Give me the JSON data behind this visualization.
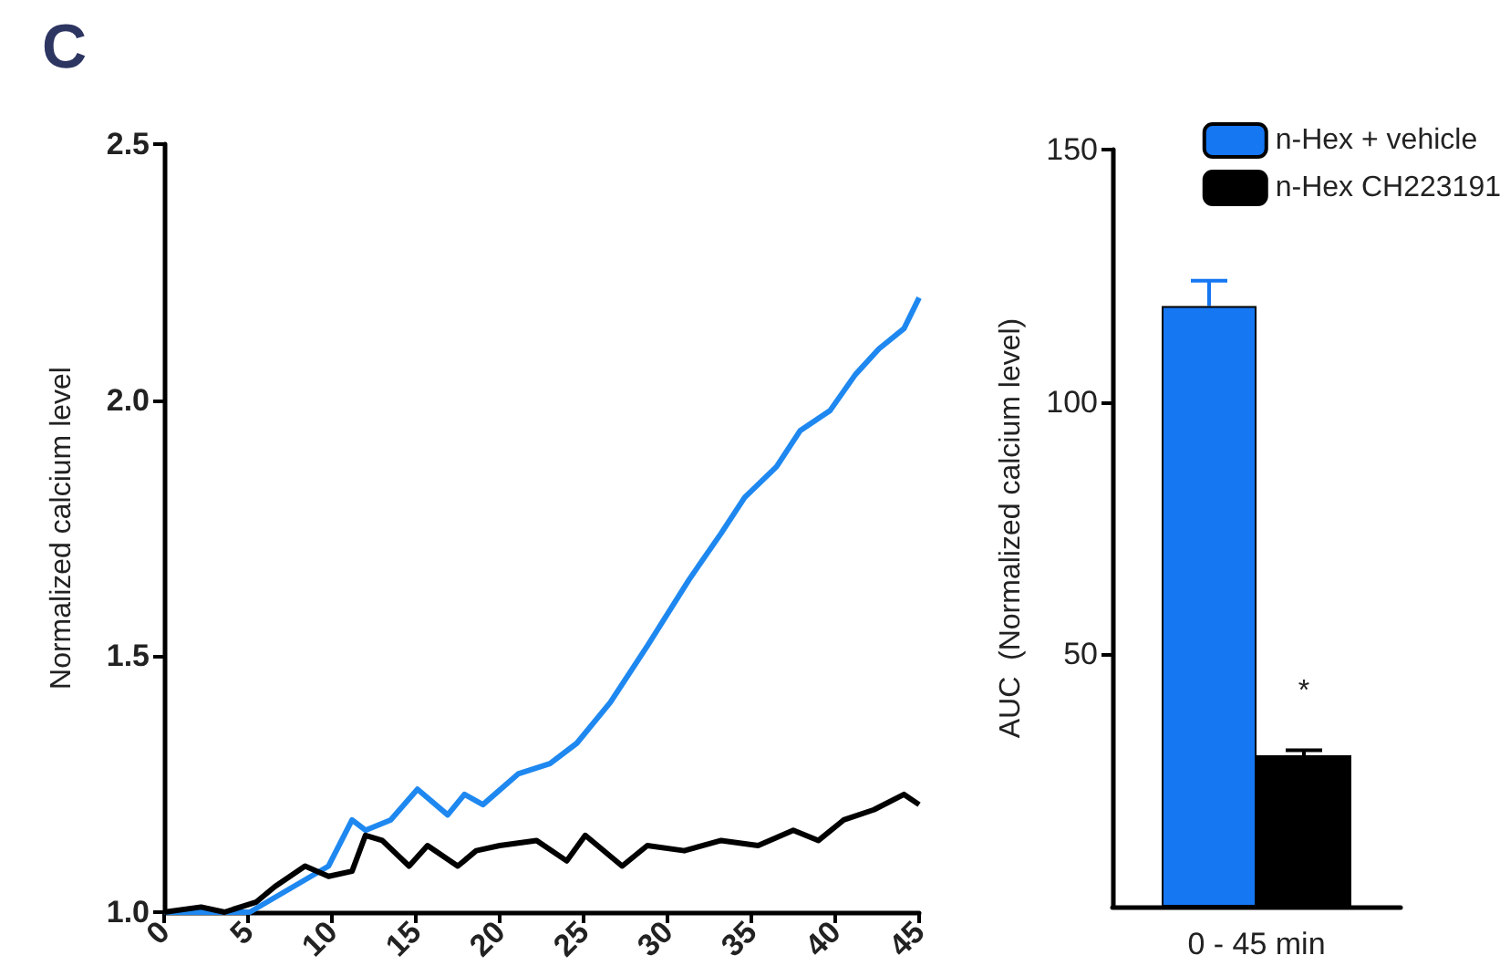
{
  "chart_data": [
    {
      "type": "line",
      "title": "C",
      "ylabel": "Normalized calcium level",
      "xlim": [
        0,
        45
      ],
      "xticks": [
        0,
        5,
        10,
        15,
        20,
        25,
        30,
        35,
        40,
        45
      ],
      "ylim": [
        1.0,
        2.5
      ],
      "yticks": [
        {
          "value": 1.0,
          "label": "1.0"
        },
        1.5,
        {
          "value": 2.0,
          "label": "2.0"
        },
        2.5
      ],
      "grid": false,
      "legend": false,
      "marker": "none",
      "line_style": "solid",
      "series": [
        {
          "color": "#1e88f0",
          "x": [
            0,
            5.1,
            9.8,
            11.2,
            12,
            13.5,
            15.1,
            16.9,
            17.9,
            19,
            21.1,
            23,
            24.6,
            26.6,
            28.8,
            31.3,
            33.2,
            34.6,
            36.5,
            37.9,
            39.7,
            41.2,
            42.6,
            44.1,
            45
          ],
          "values": [
            1.0,
            1.0,
            1.09,
            1.18,
            1.16,
            1.18,
            1.24,
            1.19,
            1.23,
            1.21,
            1.27,
            1.29,
            1.33,
            1.41,
            1.52,
            1.65,
            1.74,
            1.81,
            1.87,
            1.94,
            1.98,
            2.05,
            2.1,
            2.14,
            2.2
          ]
        },
        {
          "color": "#000000",
          "x": [
            0,
            2.2,
            3.6,
            5.5,
            6.6,
            8.4,
            9.8,
            11.2,
            12,
            13,
            14.6,
            15.7,
            17.5,
            18.6,
            20,
            22.2,
            24,
            25.1,
            27.3,
            28.8,
            31,
            33.2,
            35.4,
            37.5,
            39,
            40.5,
            42.3,
            44.1,
            45
          ],
          "values": [
            1.0,
            1.01,
            1.0,
            1.02,
            1.05,
            1.09,
            1.07,
            1.08,
            1.15,
            1.14,
            1.09,
            1.13,
            1.09,
            1.12,
            1.13,
            1.14,
            1.1,
            1.15,
            1.09,
            1.13,
            1.12,
            1.14,
            1.13,
            1.16,
            1.14,
            1.18,
            1.2,
            1.23,
            1.21
          ]
        }
      ]
    },
    {
      "type": "bar",
      "ylabel": "AUC  (Normalized calcium level)",
      "categories": [
        "0 - 45 min"
      ],
      "ylim": [
        0,
        150
      ],
      "yticks": [
        50,
        100,
        150
      ],
      "grid": false,
      "legend": "top right",
      "annotations": [
        "*"
      ],
      "series": [
        {
          "name": "n-Hex + vehicle",
          "color": "#1677f2",
          "values": [
            119
          ],
          "errors": [
            5
          ]
        },
        {
          "name": "n-Hex CH223191",
          "color": "#000000",
          "values": [
            30
          ],
          "errors": [
            1
          ]
        }
      ]
    }
  ]
}
